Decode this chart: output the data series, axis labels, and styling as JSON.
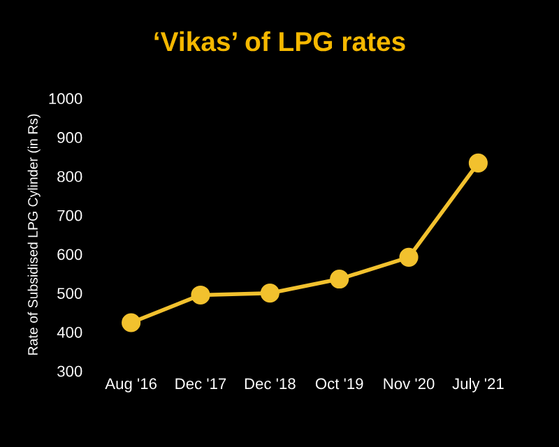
{
  "chart_data": {
    "type": "line",
    "title": "‘Vikas’ of LPG rates",
    "ylabel": "Rate of Subsidised LPG Cylinder (in Rs)",
    "categories": [
      "Aug '16",
      "Dec '17",
      "Dec '18",
      "Oct '19",
      "Nov '20",
      "July '21"
    ],
    "series": [
      {
        "color": "#f2c12e",
        "values": [
          424,
          495,
          500,
          536,
          592,
          834
        ]
      }
    ],
    "ylim": [
      300,
      1000
    ],
    "yticks": [
      300,
      400,
      500,
      600,
      700,
      800,
      900,
      1000
    ],
    "grid": false,
    "marker": "circle",
    "line_style": "solid"
  }
}
